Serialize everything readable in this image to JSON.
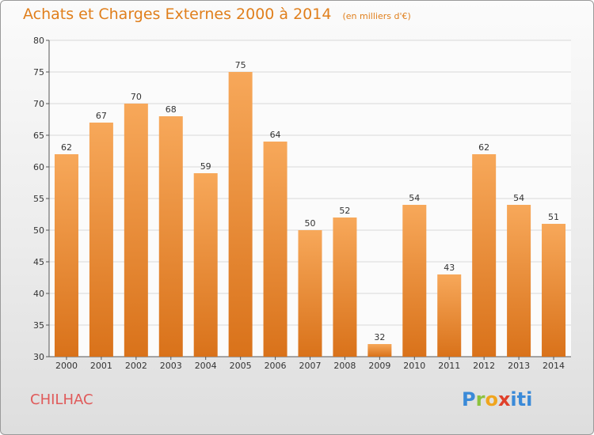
{
  "header": {
    "title": "Achats et Charges Externes 2000 à 2014",
    "subtitle": "(en milliers d'€)"
  },
  "footer": {
    "place": "CHILHAC",
    "logo_text": "Proxiti"
  },
  "colors": {
    "bar_light": "#f7a85a",
    "bar_dark": "#d9721a",
    "title": "#e07f1c",
    "place": "#e05a5a"
  },
  "chart_data": {
    "type": "bar",
    "title": "Achats et Charges Externes 2000 à 2014",
    "subtitle": "(en milliers d'€)",
    "xlabel": "",
    "ylabel": "",
    "categories": [
      "2000",
      "2001",
      "2002",
      "2003",
      "2004",
      "2005",
      "2006",
      "2007",
      "2008",
      "2009",
      "2010",
      "2011",
      "2012",
      "2013",
      "2014"
    ],
    "values": [
      62,
      67,
      70,
      68,
      59,
      75,
      64,
      50,
      52,
      32,
      54,
      43,
      62,
      54,
      51
    ],
    "ylim": [
      30,
      80
    ],
    "yticks": [
      30,
      35,
      40,
      45,
      50,
      55,
      60,
      65,
      70,
      75,
      80
    ],
    "grid": true,
    "legend": "none"
  }
}
